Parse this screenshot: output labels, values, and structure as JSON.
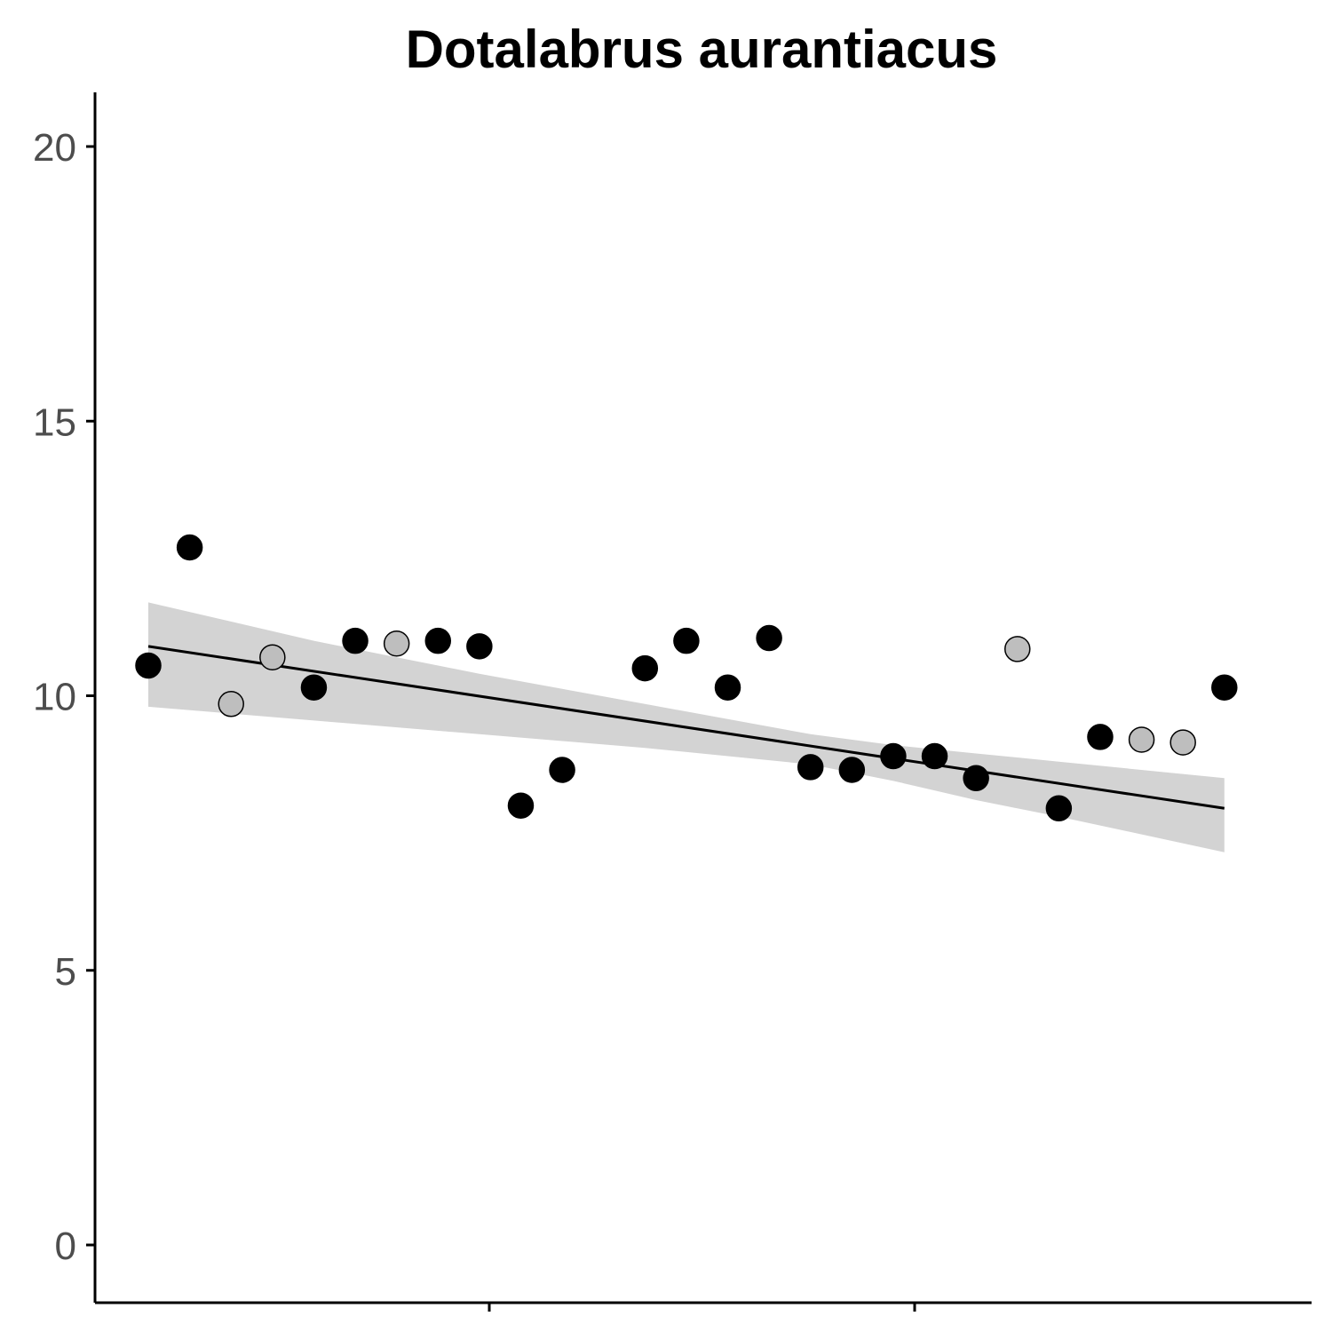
{
  "chart_data": {
    "type": "scatter",
    "title": "Dotalabrus aurantiacus",
    "xlabel": "",
    "ylabel": "",
    "ylim": [
      -1,
      21
    ],
    "y_ticks": [
      "0",
      "5",
      "10",
      "15",
      "20"
    ],
    "x_tick_count": 2,
    "x_tick_labels": [
      "",
      ""
    ],
    "grid": false,
    "legend": "none",
    "colors": {
      "black": "#000000",
      "grey": "#bebebe",
      "band": "#d3d3d3"
    },
    "points": [
      {
        "x": 1,
        "y": 10.55,
        "group": "black"
      },
      {
        "x": 2,
        "y": 12.7,
        "group": "black"
      },
      {
        "x": 3,
        "y": 9.85,
        "group": "grey"
      },
      {
        "x": 4,
        "y": 10.7,
        "group": "grey"
      },
      {
        "x": 5,
        "y": 10.15,
        "group": "black"
      },
      {
        "x": 6,
        "y": 11.0,
        "group": "black"
      },
      {
        "x": 7,
        "y": 10.95,
        "group": "grey"
      },
      {
        "x": 8,
        "y": 11.0,
        "group": "black"
      },
      {
        "x": 9,
        "y": 10.9,
        "group": "black"
      },
      {
        "x": 10,
        "y": 8.0,
        "group": "black"
      },
      {
        "x": 11,
        "y": 8.65,
        "group": "black"
      },
      {
        "x": 13,
        "y": 10.5,
        "group": "black"
      },
      {
        "x": 14,
        "y": 11.0,
        "group": "black"
      },
      {
        "x": 15,
        "y": 10.15,
        "group": "black"
      },
      {
        "x": 16,
        "y": 11.05,
        "group": "black"
      },
      {
        "x": 17,
        "y": 8.7,
        "group": "black"
      },
      {
        "x": 18,
        "y": 8.65,
        "group": "black"
      },
      {
        "x": 19,
        "y": 8.9,
        "group": "black"
      },
      {
        "x": 20,
        "y": 8.9,
        "group": "black"
      },
      {
        "x": 21,
        "y": 8.5,
        "group": "black"
      },
      {
        "x": 22,
        "y": 10.85,
        "group": "grey"
      },
      {
        "x": 23,
        "y": 7.95,
        "group": "black"
      },
      {
        "x": 24,
        "y": 9.25,
        "group": "black"
      },
      {
        "x": 25,
        "y": 9.2,
        "group": "grey"
      },
      {
        "x": 26,
        "y": 9.15,
        "group": "grey"
      },
      {
        "x": 27,
        "y": 10.15,
        "group": "black"
      }
    ],
    "fit": {
      "x": [
        1,
        27
      ],
      "y": [
        10.9,
        7.95
      ]
    },
    "ci_band": {
      "x": [
        1,
        5,
        9,
        13,
        17,
        19,
        21,
        23,
        27
      ],
      "upper": [
        11.7,
        11.0,
        10.4,
        9.85,
        9.3,
        9.1,
        8.95,
        8.8,
        8.5
      ],
      "lower": [
        9.8,
        9.55,
        9.3,
        9.05,
        8.75,
        8.45,
        8.1,
        7.8,
        7.15
      ]
    }
  }
}
